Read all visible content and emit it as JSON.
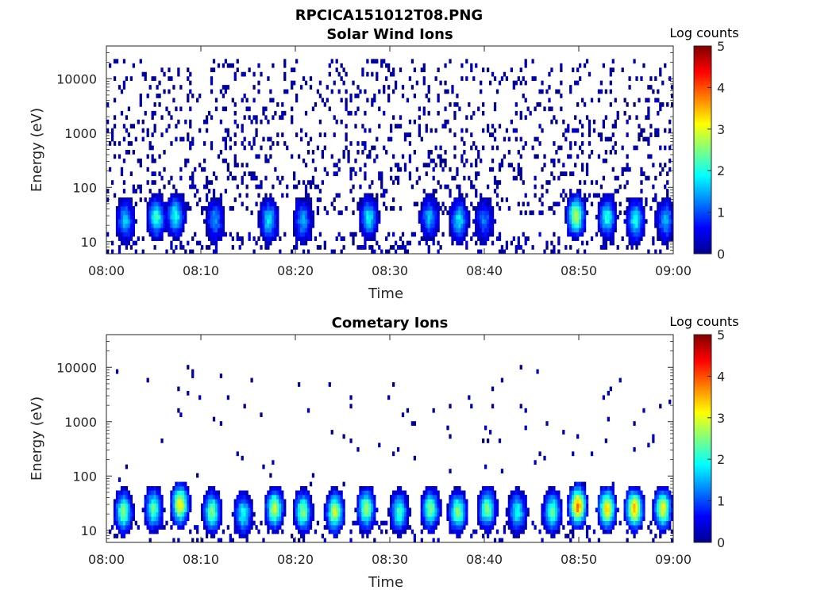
{
  "figure_title": "RPCICA151012T08.PNG",
  "chart_data": [
    {
      "type": "heatmap",
      "title": "Solar Wind Ions",
      "xlabel": "Time",
      "ylabel": "Energy (eV)",
      "x_ticks": [
        "08:00",
        "08:10",
        "08:20",
        "08:30",
        "08:40",
        "08:50",
        "09:00"
      ],
      "x_range": [
        "08:00",
        "09:00"
      ],
      "y_scale": "log",
      "y_ticks": [
        10,
        100,
        1000,
        10000
      ],
      "y_tick_labels": [
        "10",
        "100",
        "1000",
        "10000"
      ],
      "y_range": [
        6,
        40000
      ],
      "colorbar": {
        "label": "Log counts",
        "range": [
          0,
          5
        ],
        "ticks": [
          "0",
          "1",
          "2",
          "3",
          "4",
          "5"
        ],
        "colormap": "jet"
      },
      "notes": "Sparse low-count (log ~0) pixels scattered from ~30 eV to ~40 keV; recurring enhancements at ~20-40 eV around 08:02, 08:05, 08:07, 08:12, 08:17, 08:21, 08:28, 08:34, 08:37, 08:50, 08:53, 08:56, 08:59 with log counts up to ~3",
      "bursts": [
        {
          "t": 2,
          "e": 25,
          "peak": 1.6
        },
        {
          "t": 5.3,
          "e": 28,
          "peak": 2.2
        },
        {
          "t": 7.3,
          "e": 30,
          "peak": 2.0
        },
        {
          "t": 11.5,
          "e": 25,
          "peak": 1.4
        },
        {
          "t": 17.2,
          "e": 25,
          "peak": 1.8
        },
        {
          "t": 20.8,
          "e": 25,
          "peak": 1.5
        },
        {
          "t": 27.8,
          "e": 28,
          "peak": 1.8
        },
        {
          "t": 34.2,
          "e": 28,
          "peak": 1.5
        },
        {
          "t": 37.3,
          "e": 25,
          "peak": 1.8
        },
        {
          "t": 40,
          "e": 25,
          "peak": 1.2
        },
        {
          "t": 49.7,
          "e": 30,
          "peak": 2.9
        },
        {
          "t": 53,
          "e": 28,
          "peak": 2.0
        },
        {
          "t": 56,
          "e": 25,
          "peak": 2.0
        },
        {
          "t": 59.2,
          "e": 25,
          "peak": 1.6
        }
      ],
      "scatter_density": 0.18,
      "scatter_emin": 30,
      "scatter_emax": 25000
    },
    {
      "type": "heatmap",
      "title": "Cometary Ions",
      "xlabel": "Time",
      "ylabel": "Energy (eV)",
      "x_ticks": [
        "08:00",
        "08:10",
        "08:20",
        "08:30",
        "08:40",
        "08:50",
        "09:00"
      ],
      "x_range": [
        "08:00",
        "09:00"
      ],
      "y_scale": "log",
      "y_ticks": [
        10,
        100,
        1000,
        10000
      ],
      "y_tick_labels": [
        "10",
        "100",
        "1000",
        "10000"
      ],
      "y_range": [
        6,
        40000
      ],
      "colorbar": {
        "label": "Log counts",
        "range": [
          0,
          5
        ],
        "ticks": [
          "0",
          "1",
          "2",
          "3",
          "4",
          "5"
        ],
        "colormap": "jet"
      },
      "notes": "Periodic high-count bursts at ~10-40 eV roughly every 3 minutes, peaking near log counts 3.5-4 at 08:50 and 08:56; sparse isolated pixels up to ~10 keV",
      "bursts": [
        {
          "t": 1.8,
          "e": 22,
          "peak": 2.6
        },
        {
          "t": 5,
          "e": 25,
          "peak": 2.4
        },
        {
          "t": 7.8,
          "e": 30,
          "peak": 3.2
        },
        {
          "t": 11.2,
          "e": 22,
          "peak": 2.5
        },
        {
          "t": 14.5,
          "e": 20,
          "peak": 2.0
        },
        {
          "t": 17.8,
          "e": 25,
          "peak": 2.9
        },
        {
          "t": 20.8,
          "e": 22,
          "peak": 2.6
        },
        {
          "t": 24.2,
          "e": 22,
          "peak": 2.9
        },
        {
          "t": 27.5,
          "e": 25,
          "peak": 2.7
        },
        {
          "t": 31,
          "e": 22,
          "peak": 2.2
        },
        {
          "t": 34.3,
          "e": 25,
          "peak": 2.5
        },
        {
          "t": 37.2,
          "e": 22,
          "peak": 2.6
        },
        {
          "t": 40.3,
          "e": 25,
          "peak": 2.5
        },
        {
          "t": 43.5,
          "e": 22,
          "peak": 2.0
        },
        {
          "t": 47.2,
          "e": 22,
          "peak": 2.4
        },
        {
          "t": 49.9,
          "e": 28,
          "peak": 3.8
        },
        {
          "t": 53,
          "e": 25,
          "peak": 3.3
        },
        {
          "t": 55.9,
          "e": 25,
          "peak": 3.6
        },
        {
          "t": 58.9,
          "e": 25,
          "peak": 3.1
        }
      ],
      "scatter_density": 0.015,
      "scatter_emin": 60,
      "scatter_emax": 12000
    }
  ]
}
